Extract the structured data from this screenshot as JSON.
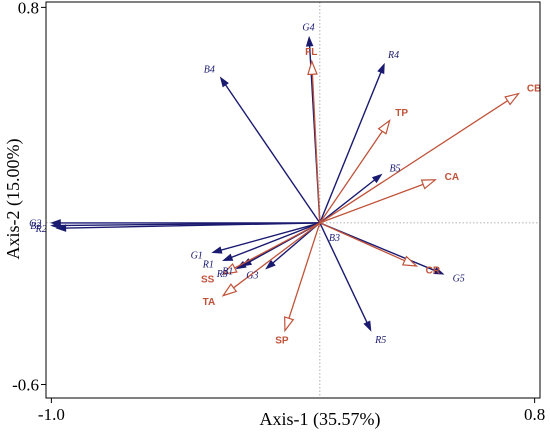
{
  "chart_data": {
    "type": "biplot",
    "xlabel": "Axis-1 (35.57%)",
    "ylabel": "Axis-2 (15.00%)",
    "xlim": [
      -1.02,
      0.82
    ],
    "ylim": [
      -0.65,
      0.82
    ],
    "xticks": [
      {
        "value": -1.0,
        "label": "-1.0"
      },
      {
        "value": 0.8,
        "label": "0.8"
      }
    ],
    "yticks": [
      {
        "value": -0.6,
        "label": "-0.6"
      },
      {
        "value": 0.8,
        "label": "0.8"
      }
    ],
    "reference_lines": {
      "x": 0,
      "y": 0,
      "style": "dotted"
    },
    "series": [
      {
        "name": "",
        "color": "#1a1a70",
        "arrowhead": "filled",
        "vectors": [
          {
            "label": "G4",
            "x": -0.04,
            "y": 0.69
          },
          {
            "label": "B4",
            "x": -0.37,
            "y": 0.54
          },
          {
            "label": "R4",
            "x": 0.24,
            "y": 0.59
          },
          {
            "label": "B5",
            "x": 0.23,
            "y": 0.18
          },
          {
            "label": "G2",
            "x": -1.0,
            "y": 0.0
          },
          {
            "label": "B2",
            "x": -1.0,
            "y": -0.01
          },
          {
            "label": "R2",
            "x": -0.98,
            "y": -0.02
          },
          {
            "label": "G1",
            "x": -0.4,
            "y": -0.11
          },
          {
            "label": "R1",
            "x": -0.36,
            "y": -0.14
          },
          {
            "label": "B1",
            "x": -0.29,
            "y": -0.16
          },
          {
            "label": "R3",
            "x": -0.31,
            "y": -0.17
          },
          {
            "label": "G3",
            "x": -0.2,
            "y": -0.17
          },
          {
            "label": "B3",
            "x": 0.0,
            "y": 0.0
          },
          {
            "label": "G5",
            "x": 0.46,
            "y": -0.19
          },
          {
            "label": "R5",
            "x": 0.19,
            "y": -0.4
          }
        ]
      },
      {
        "name": "",
        "color": "#c0533a",
        "arrowhead": "open",
        "vectors": [
          {
            "label": "FL",
            "x": -0.03,
            "y": 0.6
          },
          {
            "label": "TP",
            "x": 0.26,
            "y": 0.38
          },
          {
            "label": "CB",
            "x": 0.74,
            "y": 0.48
          },
          {
            "label": "CA",
            "x": 0.43,
            "y": 0.16
          },
          {
            "label": "CR",
            "x": 0.36,
            "y": -0.16
          },
          {
            "label": "SS",
            "x": -0.36,
            "y": -0.19
          },
          {
            "label": "TA",
            "x": -0.36,
            "y": -0.27
          },
          {
            "label": "SP",
            "x": -0.13,
            "y": -0.4
          }
        ]
      }
    ]
  }
}
